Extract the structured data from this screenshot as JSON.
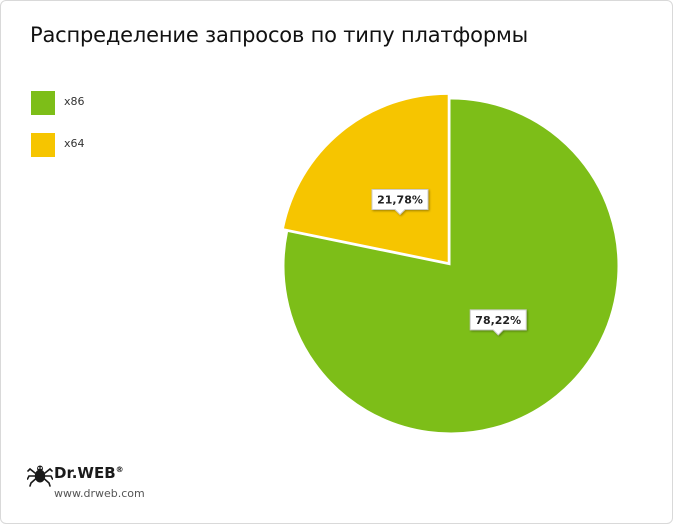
{
  "chart_data": {
    "type": "pie",
    "title": "Распределение запросов по типу платформы",
    "legend_position": "top-left",
    "start_angle_deg": 0,
    "direction": "clockwise",
    "exploded": "x64",
    "slices": [
      {
        "label": "x86",
        "value": 78.22,
        "display": "78,22%",
        "color": "#7dbe18"
      },
      {
        "label": "x64",
        "value": 21.78,
        "display": "21,78%",
        "color": "#f6c500"
      }
    ]
  },
  "branding": {
    "logo_text": "Dr.WEB",
    "registered_mark": "®",
    "website": "www.drweb.com"
  }
}
